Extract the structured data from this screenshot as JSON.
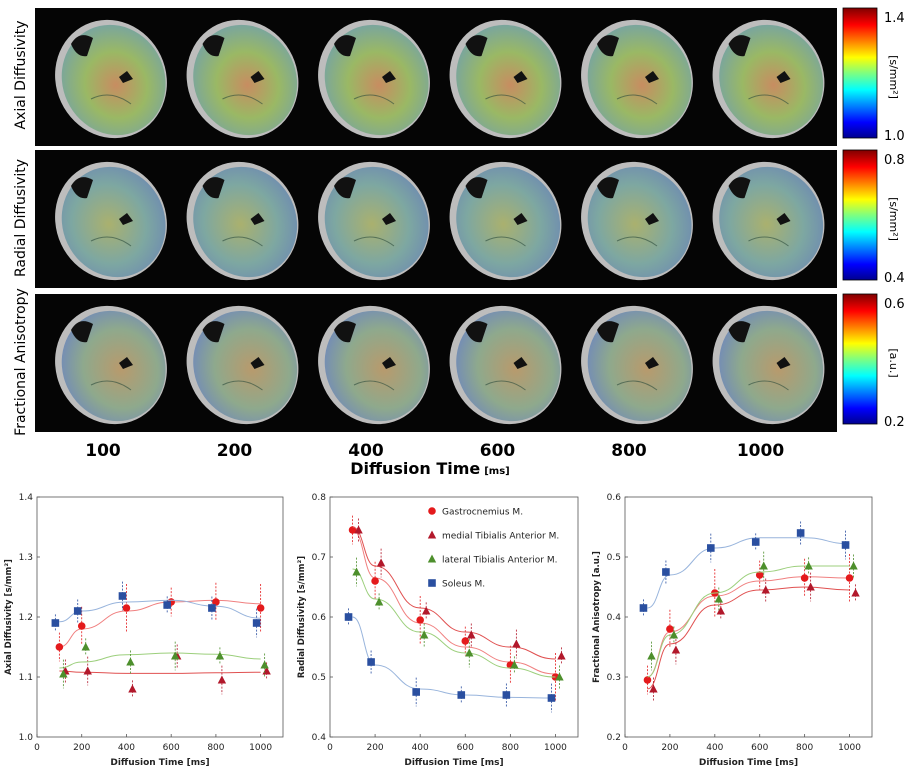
{
  "row_labels": [
    "Axial Diffusivity",
    "Radial Diffusivity",
    "Fractional Anisotropy"
  ],
  "colorbars": [
    {
      "unit": "[s/mm²]",
      "max": "1.4",
      "min": "1.0"
    },
    {
      "unit": "[s/mm²]",
      "max": "0.8",
      "min": "0.4"
    },
    {
      "unit": "[a.u.]",
      "max": "0.6",
      "min": "0.2"
    }
  ],
  "time_labels": [
    "100",
    "200",
    "400",
    "600",
    "800",
    "1000"
  ],
  "top_xlabel": "Diffusion Time",
  "top_xlabel_unit": "[ms]",
  "legend": [
    "Gastrocnemius M.",
    "medial Tibialis Anterior M.",
    "lateral Tibialis Anterior M.",
    "Soleus M."
  ],
  "colors": {
    "gastro": "#e41a1c",
    "mta": "#b2182b",
    "lta": "#4d8f2c",
    "soleus": "#2a4fa0"
  },
  "chart_data": [
    {
      "type": "scatter",
      "title": "",
      "xlabel": "Diffusion Time [ms]",
      "ylabel": "Axial Diffusivity [s/mm²]",
      "xlim": [
        0,
        1100
      ],
      "ylim": [
        1.0,
        1.4
      ],
      "xticks": [
        0,
        200,
        400,
        600,
        800,
        1000
      ],
      "yticks": [
        1.0,
        1.1,
        1.2,
        1.3,
        1.4
      ],
      "x": [
        100,
        200,
        400,
        600,
        800,
        1000
      ],
      "series": [
        {
          "name": "Gastrocnemius M.",
          "values": [
            1.15,
            1.185,
            1.215,
            1.225,
            1.225,
            1.215
          ],
          "fit": [
            1.15,
            1.18,
            1.21,
            1.225,
            1.228,
            1.222
          ]
        },
        {
          "name": "medial Tibialis Anterior M.",
          "values": [
            1.11,
            1.11,
            1.08,
            1.135,
            1.095,
            1.11
          ],
          "fit": [
            1.11,
            1.108,
            1.106,
            1.106,
            1.107,
            1.108
          ]
        },
        {
          "name": "lateral Tibialis Anterior M.",
          "values": [
            1.105,
            1.15,
            1.125,
            1.135,
            1.135,
            1.12
          ],
          "fit": [
            1.115,
            1.125,
            1.137,
            1.14,
            1.138,
            1.13
          ]
        },
        {
          "name": "Soleus M.",
          "values": [
            1.19,
            1.21,
            1.235,
            1.22,
            1.215,
            1.19
          ],
          "fit": [
            1.192,
            1.21,
            1.225,
            1.228,
            1.218,
            1.198
          ]
        }
      ]
    },
    {
      "type": "scatter",
      "title": "",
      "xlabel": "Diffusion Time [ms]",
      "ylabel": "Radial Diffusivity [s/mm²]",
      "xlim": [
        0,
        1100
      ],
      "ylim": [
        0.4,
        0.8
      ],
      "xticks": [
        0,
        200,
        400,
        600,
        800,
        1000
      ],
      "yticks": [
        0.4,
        0.5,
        0.6,
        0.7,
        0.8
      ],
      "x": [
        100,
        200,
        400,
        600,
        800,
        1000
      ],
      "series": [
        {
          "name": "Gastrocnemius M.",
          "values": [
            0.745,
            0.66,
            0.595,
            0.56,
            0.52,
            0.5
          ],
          "fit": [
            0.745,
            0.665,
            0.59,
            0.55,
            0.525,
            0.505
          ]
        },
        {
          "name": "medial Tibialis Anterior M.",
          "values": [
            0.745,
            0.69,
            0.61,
            0.57,
            0.555,
            0.535
          ],
          "fit": [
            0.75,
            0.685,
            0.615,
            0.575,
            0.55,
            0.53
          ]
        },
        {
          "name": "lateral Tibialis Anterior M.",
          "values": [
            0.675,
            0.625,
            0.57,
            0.54,
            0.52,
            0.5
          ],
          "fit": [
            0.68,
            0.63,
            0.575,
            0.54,
            0.515,
            0.5
          ]
        },
        {
          "name": "Soleus M.",
          "values": [
            0.6,
            0.525,
            0.475,
            0.47,
            0.47,
            0.465
          ],
          "fit": [
            0.6,
            0.52,
            0.48,
            0.47,
            0.466,
            0.465
          ]
        }
      ]
    },
    {
      "type": "scatter",
      "title": "",
      "xlabel": "Diffusion Time [ms]",
      "ylabel": "Fractional Anisotropy [a.u.]",
      "xlim": [
        0,
        1100
      ],
      "ylim": [
        0.2,
        0.6
      ],
      "xticks": [
        0,
        200,
        400,
        600,
        800,
        1000
      ],
      "yticks": [
        0.2,
        0.3,
        0.4,
        0.5,
        0.6
      ],
      "x": [
        100,
        200,
        400,
        600,
        800,
        1000
      ],
      "series": [
        {
          "name": "Gastrocnemius M.",
          "values": [
            0.295,
            0.38,
            0.44,
            0.47,
            0.465,
            0.465
          ],
          "fit": [
            0.3,
            0.375,
            0.435,
            0.46,
            0.467,
            0.465
          ]
        },
        {
          "name": "medial Tibialis Anterior M.",
          "values": [
            0.28,
            0.345,
            0.41,
            0.445,
            0.45,
            0.44
          ],
          "fit": [
            0.28,
            0.355,
            0.42,
            0.445,
            0.45,
            0.445
          ]
        },
        {
          "name": "lateral Tibialis Anterior M.",
          "values": [
            0.335,
            0.37,
            0.43,
            0.485,
            0.485,
            0.485
          ],
          "fit": [
            0.3,
            0.37,
            0.44,
            0.475,
            0.485,
            0.485
          ]
        },
        {
          "name": "Soleus M.",
          "values": [
            0.415,
            0.475,
            0.515,
            0.525,
            0.54,
            0.52
          ],
          "fit": [
            0.415,
            0.47,
            0.515,
            0.532,
            0.532,
            0.522
          ]
        }
      ]
    }
  ]
}
